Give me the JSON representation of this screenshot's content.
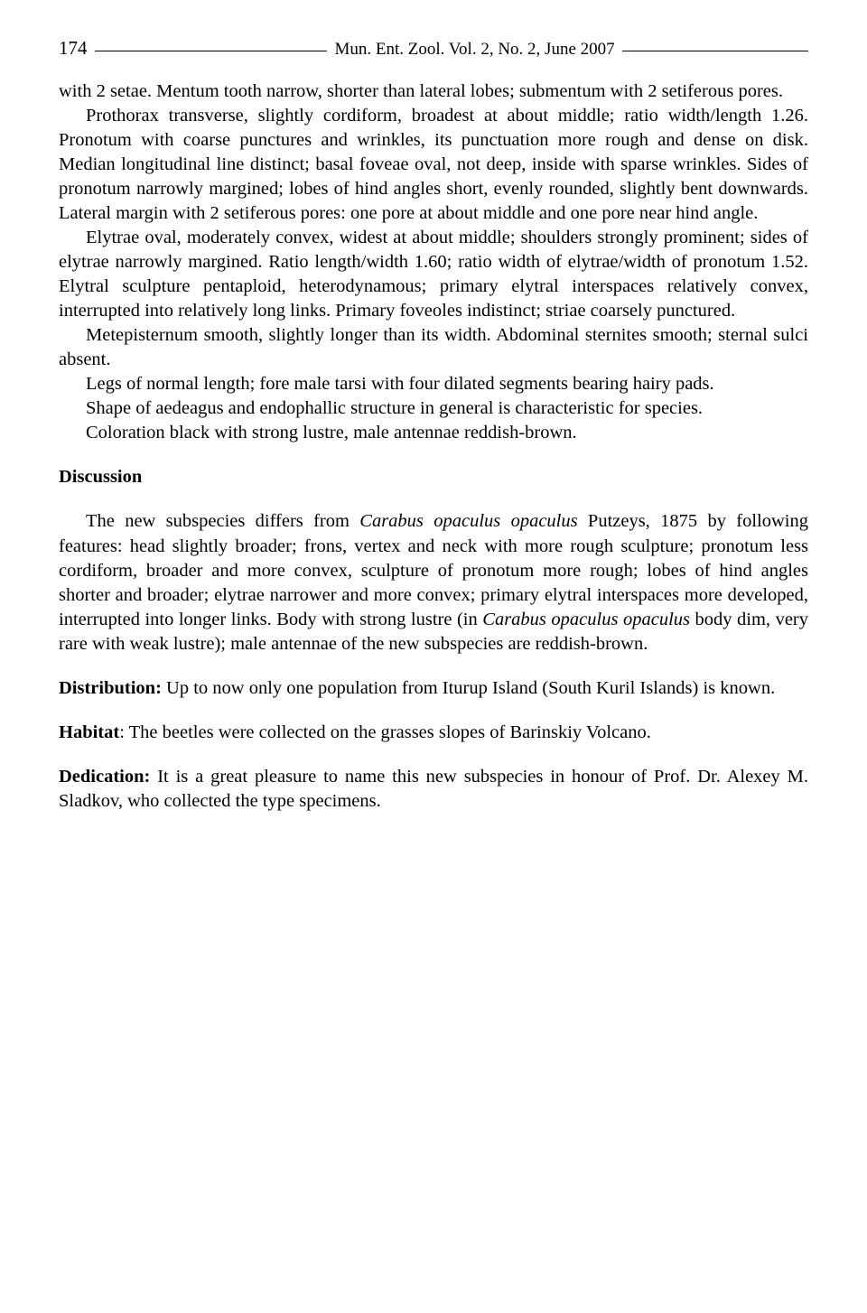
{
  "header": {
    "page_number": "174",
    "journal": "Mun. Ent. Zool. Vol. 2, No. 2, June 2007"
  },
  "body": {
    "p1": "with 2 setae. Mentum tooth narrow, shorter than lateral lobes; submentum with 2 setiferous pores.",
    "p2": "Prothorax transverse, slightly cordiform, broadest at about middle; ratio width/length 1.26. Pronotum with coarse punctures and wrinkles, its punctuation more rough and dense on disk. Median longitudinal line distinct; basal foveae oval, not deep, inside with sparse wrinkles. Sides of pronotum narrowly margined; lobes of hind angles short, evenly rounded, slightly bent downwards. Lateral margin with 2 setiferous pores: one pore at about middle and one  pore near hind angle.",
    "p3": "Elytrae oval, moderately convex, widest at about middle; shoulders strongly prominent; sides of elytrae narrowly margined. Ratio length/width 1.60; ratio width of elytrae/width of pronotum 1.52. Elytral sculpture pentaploid, heterodynamous; primary elytral interspaces relatively convex, interrupted into relatively long links. Primary foveoles indistinct; striae coarsely punctured.",
    "p4": "Metepisternum smooth, slightly longer than its width. Abdominal sternites smooth; sternal sulci absent.",
    "p5": "Legs of normal length; fore male tarsi with four dilated segments bearing hairy pads.",
    "p6": "Shape of aedeagus and endophallic structure in general is characteristic for species.",
    "p7": "Coloration black with strong lustre, male antennae reddish-brown."
  },
  "discussion": {
    "title": "Discussion",
    "p1_a": "The new subspecies differs from ",
    "p1_italic1": "Carabus opaculus opaculus",
    "p1_b": " Putzeys, 1875 by following features: head slightly broader; frons, vertex and neck with more rough sculpture; pronotum less cordiform, broader and more convex, sculpture of pronotum more rough; lobes of hind angles shorter and broader; elytrae narrower and more convex; primary elytral interspaces more developed, interrupted into longer links. Body with strong lustre (in ",
    "p1_italic2": "Carabus opaculus opaculus",
    "p1_c": " body dim, very rare with weak lustre); male antennae of the new subspecies are reddish-brown."
  },
  "distribution": {
    "label": "Distribution:",
    "text": " Up to now only one population from Iturup Island (South Kuril Islands) is known."
  },
  "habitat": {
    "label": "Habitat",
    "text": ": The beetles were collected on the grasses slopes of Barinskiy Volcano."
  },
  "dedication": {
    "label": "Dedication:",
    "text": " It is a great pleasure to name this new subspecies in honour of Prof. Dr. Alexey M. Sladkov, who collected the type specimens."
  }
}
